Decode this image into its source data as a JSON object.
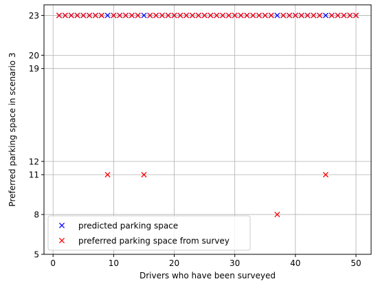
{
  "chart_data": {
    "type": "scatter",
    "xlabel": "Drivers who have been surveyed",
    "ylabel": "Preferred parking space in scenario 3",
    "xlim": [
      -1.5,
      52.5
    ],
    "ylim": [
      5,
      23.8
    ],
    "xticks": [
      0,
      10,
      20,
      30,
      40,
      50
    ],
    "yticks": [
      5,
      8,
      11,
      12,
      19,
      20,
      23
    ],
    "grid": true,
    "legend_position": "lower-left",
    "marker": "x",
    "series": [
      {
        "name": "predicted parking space",
        "color": "#0000ff",
        "x": [
          1,
          2,
          3,
          4,
          5,
          6,
          7,
          8,
          9,
          10,
          11,
          12,
          13,
          14,
          15,
          16,
          17,
          18,
          19,
          20,
          21,
          22,
          23,
          24,
          25,
          26,
          27,
          28,
          29,
          30,
          31,
          32,
          33,
          34,
          35,
          36,
          37,
          38,
          39,
          40,
          41,
          42,
          43,
          44,
          45,
          46,
          47,
          48,
          49,
          50
        ],
        "y": [
          23,
          23,
          23,
          23,
          23,
          23,
          23,
          23,
          23,
          23,
          23,
          23,
          23,
          23,
          23,
          23,
          23,
          23,
          23,
          23,
          23,
          23,
          23,
          23,
          23,
          23,
          23,
          23,
          23,
          23,
          23,
          23,
          23,
          23,
          23,
          23,
          23,
          23,
          23,
          23,
          23,
          23,
          23,
          23,
          23,
          23,
          23,
          23,
          23,
          23
        ]
      },
      {
        "name": "preferred parking space from survey",
        "color": "#ff0000",
        "x": [
          1,
          2,
          3,
          4,
          5,
          6,
          7,
          8,
          9,
          10,
          11,
          12,
          13,
          14,
          15,
          16,
          17,
          18,
          19,
          20,
          21,
          22,
          23,
          24,
          25,
          26,
          27,
          28,
          29,
          30,
          31,
          32,
          33,
          34,
          35,
          36,
          37,
          38,
          39,
          40,
          41,
          42,
          43,
          44,
          45,
          46,
          47,
          48,
          49,
          50
        ],
        "y": [
          23,
          23,
          23,
          23,
          23,
          23,
          23,
          23,
          11,
          23,
          23,
          23,
          23,
          23,
          11,
          23,
          23,
          23,
          23,
          23,
          23,
          23,
          23,
          23,
          23,
          23,
          23,
          23,
          23,
          23,
          23,
          23,
          23,
          23,
          23,
          23,
          8,
          23,
          23,
          23,
          23,
          23,
          23,
          23,
          11,
          23,
          23,
          23,
          23,
          23
        ]
      }
    ]
  }
}
